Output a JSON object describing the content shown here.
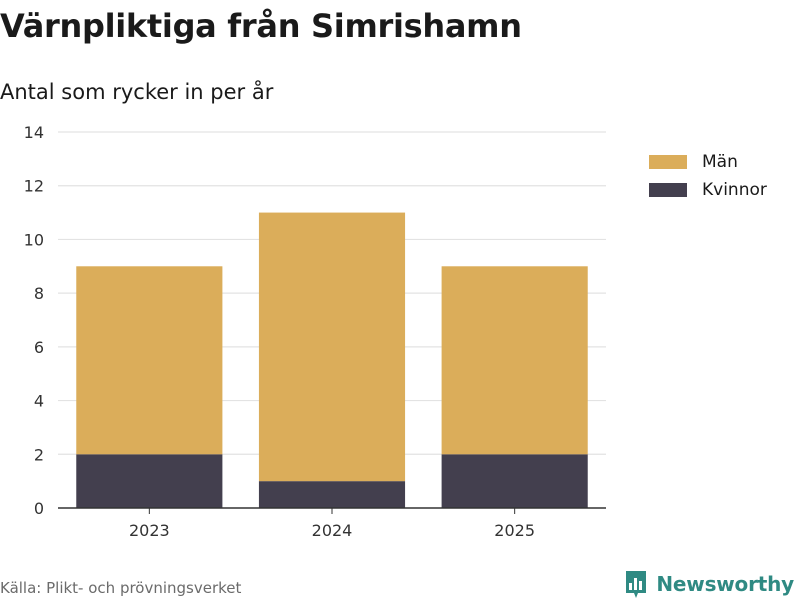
{
  "chart_data": {
    "type": "bar",
    "stacked": true,
    "title": "Värnpliktiga från Simrishamn",
    "subtitle": "Antal som rycker in per år",
    "categories": [
      "2023",
      "2024",
      "2025"
    ],
    "series": [
      {
        "name": "Kvinnor",
        "values": [
          2,
          1,
          2
        ],
        "color": "#433f4e"
      },
      {
        "name": "Män",
        "values": [
          7,
          10,
          7
        ],
        "color": "#dbad5a"
      }
    ],
    "ylim": [
      0,
      14
    ],
    "yticks": [
      0,
      2,
      4,
      6,
      8,
      10,
      12,
      14
    ],
    "xlabel": "",
    "ylabel": "",
    "grid": true,
    "legend": "right",
    "legend_order": [
      "Män",
      "Kvinnor"
    ]
  },
  "footer": {
    "source": "Källa: Plikt- och prövningsverket",
    "brand": "Newsworthy"
  },
  "colors": {
    "brand": "#2f8a83",
    "grid": "#e3e3e3",
    "axis": "#333333"
  }
}
